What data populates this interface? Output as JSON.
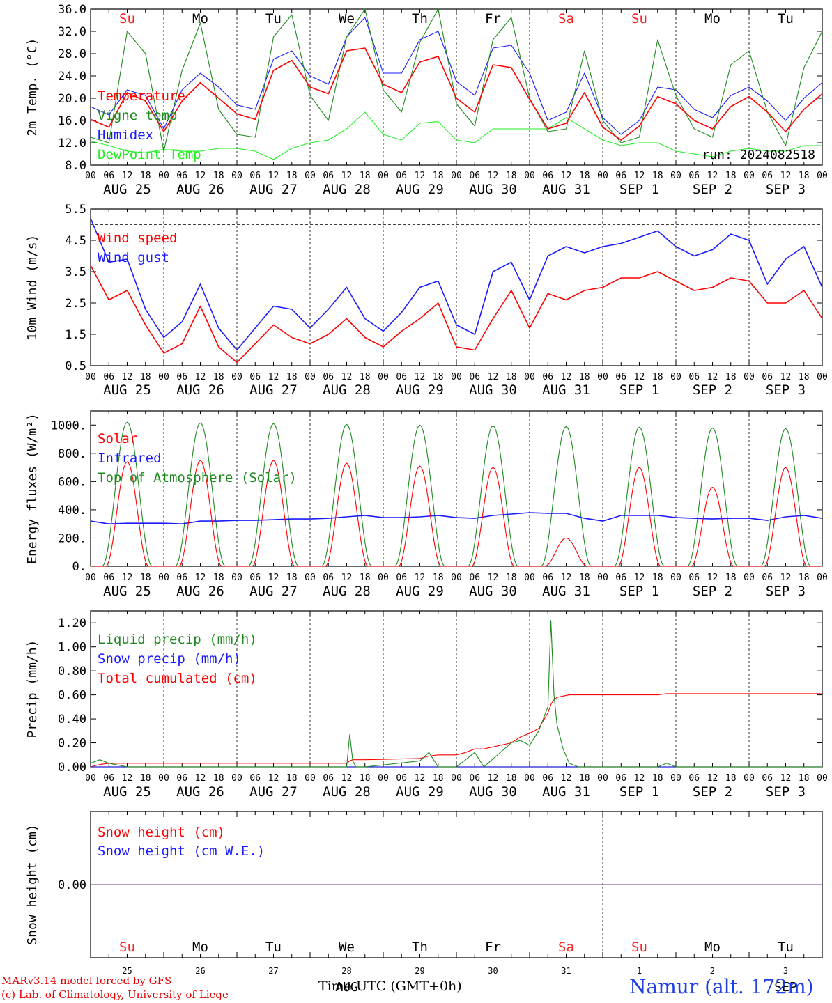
{
  "colors": {
    "red": "#ff0000",
    "green": "#1e8a1e",
    "blue": "#1a1aff",
    "lime": "#22ee22",
    "day_red": "#ff2020",
    "purple": "#7a3a8a"
  },
  "days": [
    "Su",
    "Mo",
    "Tu",
    "We",
    "Th",
    "Fr",
    "Sa",
    "Su",
    "Mo",
    "Tu"
  ],
  "weekend_days": [
    0,
    6,
    7
  ],
  "date_labels": [
    "AUG 25",
    "AUG 26",
    "AUG 27",
    "AUG 28",
    "AUG 29",
    "AUG 30",
    "AUG 31",
    "SEP  1",
    "SEP  2",
    "SEP  3"
  ],
  "hour_ticks": [
    "00",
    "06",
    "12",
    "18"
  ],
  "hour_end": "00",
  "day_numbers": [
    "25",
    "26",
    "27",
    "28",
    "29",
    "30",
    "31",
    "1",
    "2",
    "3"
  ],
  "bottom_month_labels": [
    {
      "text": "AUG",
      "day": 3
    },
    {
      "text": "SEP",
      "day": 9
    }
  ],
  "footer": {
    "model": "MARv3.14 model forced by GFS",
    "lab": "(c) Lab. of Climatology, University of Liege",
    "xlabel": "Time UTC (GMT+0h)",
    "location": "Namur (alt. 172m)"
  },
  "chart_data": [
    {
      "type": "line",
      "id": "temp",
      "ylabel": "2m Temp. (°C)",
      "ylim": [
        8.0,
        36.0
      ],
      "yticks": [
        8,
        12,
        16,
        20,
        24,
        28,
        32,
        36
      ],
      "ytick_labels": [
        "8.0",
        "12.0",
        "16.0",
        "20.0",
        "24.0",
        "28.0",
        "32.0",
        "36.0"
      ],
      "annotation": "run: 2024082518",
      "x": [
        0,
        6,
        12,
        18,
        24,
        30,
        36,
        42,
        48,
        54,
        60,
        66,
        72,
        78,
        84,
        90,
        96,
        102,
        108,
        114,
        120,
        126,
        132,
        138,
        144,
        150,
        156,
        162,
        168,
        174,
        180,
        186,
        192,
        198,
        204,
        210,
        216,
        222,
        228,
        234,
        240
      ],
      "x_unit": "hours since AUG 25 00 UTC",
      "series": [
        {
          "name": "Temperature",
          "color": "red",
          "values": [
            16.2,
            14.8,
            21.0,
            19.5,
            14.0,
            19.5,
            22.8,
            20.0,
            17.2,
            16.2,
            25.0,
            26.8,
            22.0,
            20.8,
            28.5,
            29.0,
            22.5,
            21.0,
            26.5,
            27.5,
            20.0,
            17.5,
            26.0,
            25.5,
            19.8,
            14.5,
            15.5,
            21.0,
            14.8,
            12.5,
            15.0,
            20.3,
            19.0,
            16.0,
            14.5,
            18.5,
            20.3,
            17.5,
            14.0,
            18.0,
            20.8
          ]
        },
        {
          "name": "Vigne temp",
          "color": "green",
          "values": [
            13.0,
            12.0,
            32.0,
            28.0,
            10.5,
            25.0,
            33.5,
            18.0,
            13.5,
            13.0,
            31.0,
            35.0,
            20.5,
            16.0,
            31.0,
            36.0,
            21.5,
            17.5,
            30.0,
            36.0,
            19.0,
            15.0,
            30.5,
            34.5,
            20.0,
            14.0,
            14.5,
            28.5,
            16.0,
            12.0,
            13.0,
            30.5,
            20.5,
            14.5,
            13.0,
            26.0,
            28.5,
            17.5,
            11.5,
            25.5,
            32.0
          ]
        },
        {
          "name": "Humidex",
          "color": "blue",
          "values": [
            18.5,
            17.0,
            21.5,
            20.5,
            14.5,
            21.5,
            24.5,
            22.0,
            18.8,
            18.0,
            27.0,
            28.5,
            24.0,
            22.5,
            31.0,
            34.5,
            24.5,
            24.5,
            30.5,
            32.0,
            23.0,
            20.5,
            29.0,
            29.5,
            24.5,
            16.0,
            17.5,
            24.5,
            16.5,
            13.5,
            16.0,
            22.0,
            21.5,
            18.0,
            16.5,
            20.5,
            22.0,
            19.5,
            16.0,
            20.0,
            22.8
          ]
        },
        {
          "name": "DewPoint Temp",
          "color": "lime",
          "values": [
            12.3,
            11.5,
            10.5,
            10.2,
            10.8,
            10.5,
            10.5,
            11.0,
            11.0,
            10.5,
            9.0,
            11.0,
            12.0,
            12.5,
            14.5,
            17.5,
            13.5,
            12.5,
            15.5,
            15.8,
            12.5,
            12.0,
            14.5,
            14.5,
            14.5,
            14.5,
            16.5,
            14.5,
            12.5,
            11.5,
            12.0,
            12.0,
            10.5,
            10.0,
            9.5,
            10.5,
            11.0,
            10.5,
            10.5,
            11.5,
            11.5
          ]
        }
      ]
    },
    {
      "type": "line",
      "id": "wind",
      "ylabel": "10m Wind (m/s)",
      "ylim": [
        0.5,
        5.5
      ],
      "yticks": [
        0.5,
        1.5,
        2.5,
        3.5,
        4.5,
        5.5
      ],
      "ytick_labels": [
        "0.5",
        "1.5",
        "2.5",
        "3.5",
        "4.5",
        "5.5"
      ],
      "reference_line": 5.0,
      "x": [
        0,
        6,
        12,
        18,
        24,
        30,
        36,
        42,
        48,
        54,
        60,
        66,
        72,
        78,
        84,
        90,
        96,
        102,
        108,
        114,
        120,
        126,
        132,
        138,
        144,
        150,
        156,
        162,
        168,
        174,
        180,
        186,
        192,
        198,
        204,
        210,
        216,
        222,
        228,
        234,
        240
      ],
      "x_unit": "hours since AUG 25 00 UTC",
      "series": [
        {
          "name": "Wind speed",
          "color": "red",
          "values": [
            3.7,
            2.6,
            2.9,
            1.8,
            0.9,
            1.2,
            2.4,
            1.1,
            0.6,
            1.2,
            1.8,
            1.4,
            1.2,
            1.5,
            2.0,
            1.4,
            1.1,
            1.6,
            2.0,
            2.5,
            1.1,
            1.0,
            2.0,
            2.9,
            1.7,
            2.8,
            2.6,
            2.9,
            3.0,
            3.3,
            3.3,
            3.5,
            3.2,
            2.9,
            3.0,
            3.3,
            3.2,
            2.5,
            2.5,
            2.9,
            2.0
          ]
        },
        {
          "name": "Wind gust",
          "color": "blue",
          "values": [
            5.2,
            3.8,
            3.9,
            2.3,
            1.4,
            1.9,
            3.1,
            1.7,
            1.0,
            1.7,
            2.4,
            2.3,
            1.7,
            2.3,
            3.0,
            2.0,
            1.6,
            2.2,
            3.0,
            3.2,
            1.8,
            1.5,
            3.5,
            3.8,
            2.6,
            4.0,
            4.3,
            4.1,
            4.3,
            4.4,
            4.6,
            4.8,
            4.3,
            4.0,
            4.2,
            4.7,
            4.5,
            3.1,
            3.9,
            4.3,
            3.0
          ]
        }
      ]
    },
    {
      "type": "line",
      "id": "energy",
      "ylabel": "Energy fluxes (W/m²)",
      "ylim": [
        0,
        1100
      ],
      "yticks": [
        0,
        200,
        400,
        600,
        800,
        1000
      ],
      "ytick_labels": [
        "0.",
        "200.",
        "400.",
        "600.",
        "800.",
        "1000."
      ],
      "x": [
        0,
        6,
        12,
        18,
        24,
        30,
        36,
        42,
        48,
        54,
        60,
        66,
        72,
        78,
        84,
        90,
        96,
        102,
        108,
        114,
        120,
        126,
        132,
        138,
        144,
        150,
        156,
        162,
        168,
        174,
        180,
        186,
        192,
        198,
        204,
        210,
        216,
        222,
        228,
        234,
        240
      ],
      "x_unit": "hours since AUG 25 00 UTC",
      "series": [
        {
          "name": "Solar",
          "color": "red",
          "values": [
            0,
            0,
            740,
            0,
            0,
            0,
            750,
            0,
            0,
            0,
            750,
            0,
            0,
            0,
            730,
            0,
            0,
            0,
            710,
            0,
            0,
            0,
            700,
            0,
            0,
            0,
            200,
            0,
            0,
            0,
            700,
            0,
            0,
            0,
            560,
            0,
            0,
            0,
            700,
            0,
            0
          ]
        },
        {
          "name": "Infrared",
          "color": "blue",
          "values": [
            320,
            300,
            305,
            305,
            305,
            300,
            320,
            320,
            325,
            325,
            330,
            335,
            335,
            340,
            350,
            360,
            345,
            345,
            350,
            360,
            345,
            340,
            360,
            370,
            380,
            375,
            375,
            340,
            320,
            360,
            360,
            360,
            345,
            340,
            335,
            340,
            340,
            325,
            350,
            360,
            340
          ]
        },
        {
          "name": "Top of Atmosphere (Solar)",
          "color": "green",
          "values": [
            0,
            0,
            1020,
            0,
            0,
            0,
            1015,
            0,
            0,
            0,
            1010,
            0,
            0,
            0,
            1005,
            0,
            0,
            0,
            1000,
            0,
            0,
            0,
            995,
            0,
            0,
            0,
            990,
            0,
            0,
            0,
            985,
            0,
            0,
            0,
            980,
            0,
            0,
            0,
            975,
            0,
            0
          ]
        }
      ]
    },
    {
      "type": "line",
      "id": "precip",
      "ylabel": "Precip (mm/h)",
      "ylim": [
        0.0,
        1.3
      ],
      "yticks": [
        0.0,
        0.2,
        0.4,
        0.6,
        0.8,
        1.0,
        1.2
      ],
      "ytick_labels": [
        "0.00",
        "0.20",
        "0.40",
        "0.60",
        "0.80",
        "1.00",
        "1.20"
      ],
      "x": [
        0,
        3,
        6,
        12,
        18,
        24,
        48,
        72,
        84,
        85,
        86,
        87,
        90,
        108,
        111,
        114,
        120,
        123,
        126,
        129,
        138,
        141,
        144,
        147,
        150,
        151,
        152,
        153,
        155,
        157,
        160,
        168,
        180,
        186,
        189,
        192,
        240
      ],
      "x_unit": "hours since AUG 25 00 UTC",
      "series": [
        {
          "name": "Liquid precip (mm/h)",
          "color": "green",
          "values": [
            0.03,
            0.06,
            0.03,
            0.0,
            0.0,
            0.0,
            0.0,
            0.0,
            0.0,
            0.27,
            0.05,
            0.0,
            0.0,
            0.05,
            0.12,
            0.0,
            0.0,
            0.06,
            0.12,
            0.0,
            0.2,
            0.22,
            0.18,
            0.3,
            0.5,
            1.22,
            0.6,
            0.35,
            0.15,
            0.03,
            0.0,
            0.0,
            0.0,
            0.0,
            0.03,
            0.0,
            0.0
          ]
        },
        {
          "name": "Snow precip (mm/h)",
          "color": "blue",
          "values": [
            0.0,
            0.0,
            0.0,
            0.0,
            0.0,
            0.0,
            0.0,
            0.0,
            0.0,
            0.0,
            0.0,
            0.0,
            0.0,
            0.0,
            0.0,
            0.0,
            0.0,
            0.0,
            0.0,
            0.0,
            0.0,
            0.0,
            0.0,
            0.0,
            0.0,
            0.0,
            0.0,
            0.0,
            0.0,
            0.0,
            0.0,
            0.0,
            0.0,
            0.0,
            0.0,
            0.0,
            0.0
          ]
        },
        {
          "name": "Total cumulated (cm)",
          "color": "red",
          "values": [
            0.0,
            0.02,
            0.03,
            0.03,
            0.03,
            0.03,
            0.03,
            0.03,
            0.03,
            0.05,
            0.06,
            0.06,
            0.06,
            0.07,
            0.09,
            0.1,
            0.1,
            0.12,
            0.15,
            0.15,
            0.2,
            0.25,
            0.28,
            0.32,
            0.45,
            0.52,
            0.56,
            0.58,
            0.59,
            0.6,
            0.6,
            0.6,
            0.6,
            0.6,
            0.61,
            0.61,
            0.61
          ]
        }
      ]
    },
    {
      "type": "line",
      "id": "snow",
      "ylabel": "Snow height (cm)",
      "ylim": [
        -1.0,
        1.0
      ],
      "yticks": [
        0.0
      ],
      "ytick_labels": [
        "0.00"
      ],
      "x": [
        0,
        240
      ],
      "x_unit": "hours since AUG 25 00 UTC",
      "series": [
        {
          "name": "Snow height (cm)",
          "color": "red",
          "values": [
            0.0,
            0.0
          ]
        },
        {
          "name": "Snow height (cm W.E.)",
          "color": "blue",
          "values": [
            0.0,
            0.0
          ]
        }
      ]
    }
  ]
}
